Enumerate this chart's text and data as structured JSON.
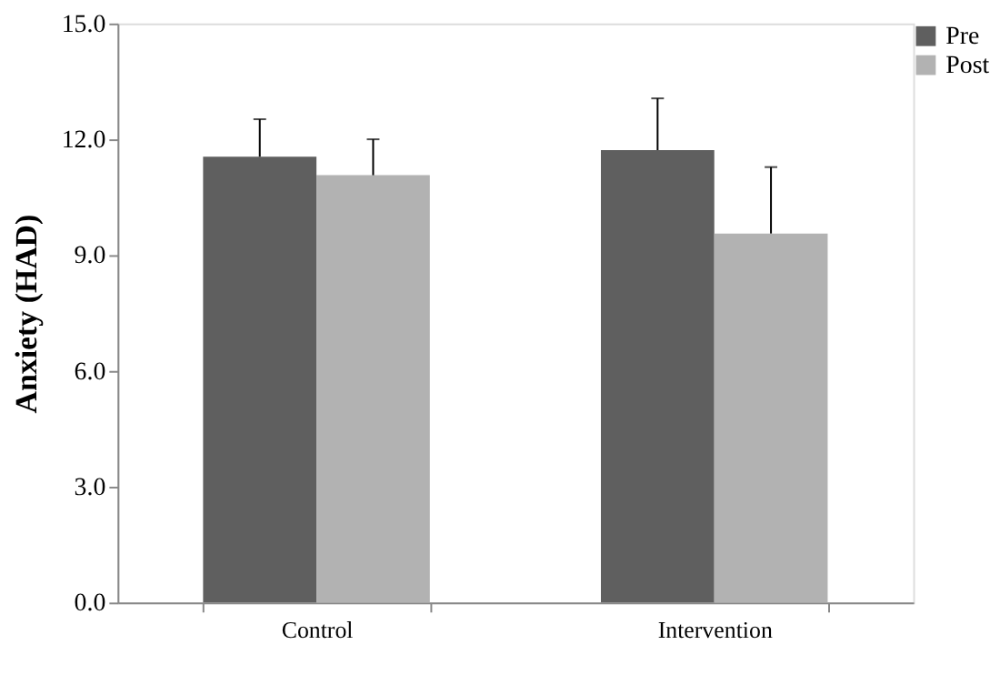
{
  "chart_data": {
    "type": "bar",
    "ylabel": "Anxiety (HAD)",
    "categories": [
      "Control",
      "Intervention"
    ],
    "series": [
      {
        "name": "Pre",
        "color": "#5f5f5f",
        "values": [
          11.55,
          11.72
        ],
        "errors": [
          [
            11.55,
            12.52
          ],
          [
            11.72,
            13.06
          ]
        ]
      },
      {
        "name": "Post",
        "color": "#b2b2b2",
        "values": [
          11.07,
          9.56
        ],
        "errors": [
          [
            11.07,
            12.0
          ],
          [
            9.56,
            11.28
          ]
        ]
      }
    ],
    "ylim": [
      0,
      15
    ],
    "yticks": [
      {
        "value": 0,
        "label": "0.0"
      },
      {
        "value": 3,
        "label": "3.0"
      },
      {
        "value": 6,
        "label": "6.0"
      },
      {
        "value": 9,
        "label": "9.0"
      },
      {
        "value": 12,
        "label": "12.0"
      },
      {
        "value": 15,
        "label": "15.0"
      }
    ],
    "grid": false,
    "legend": "top right"
  }
}
